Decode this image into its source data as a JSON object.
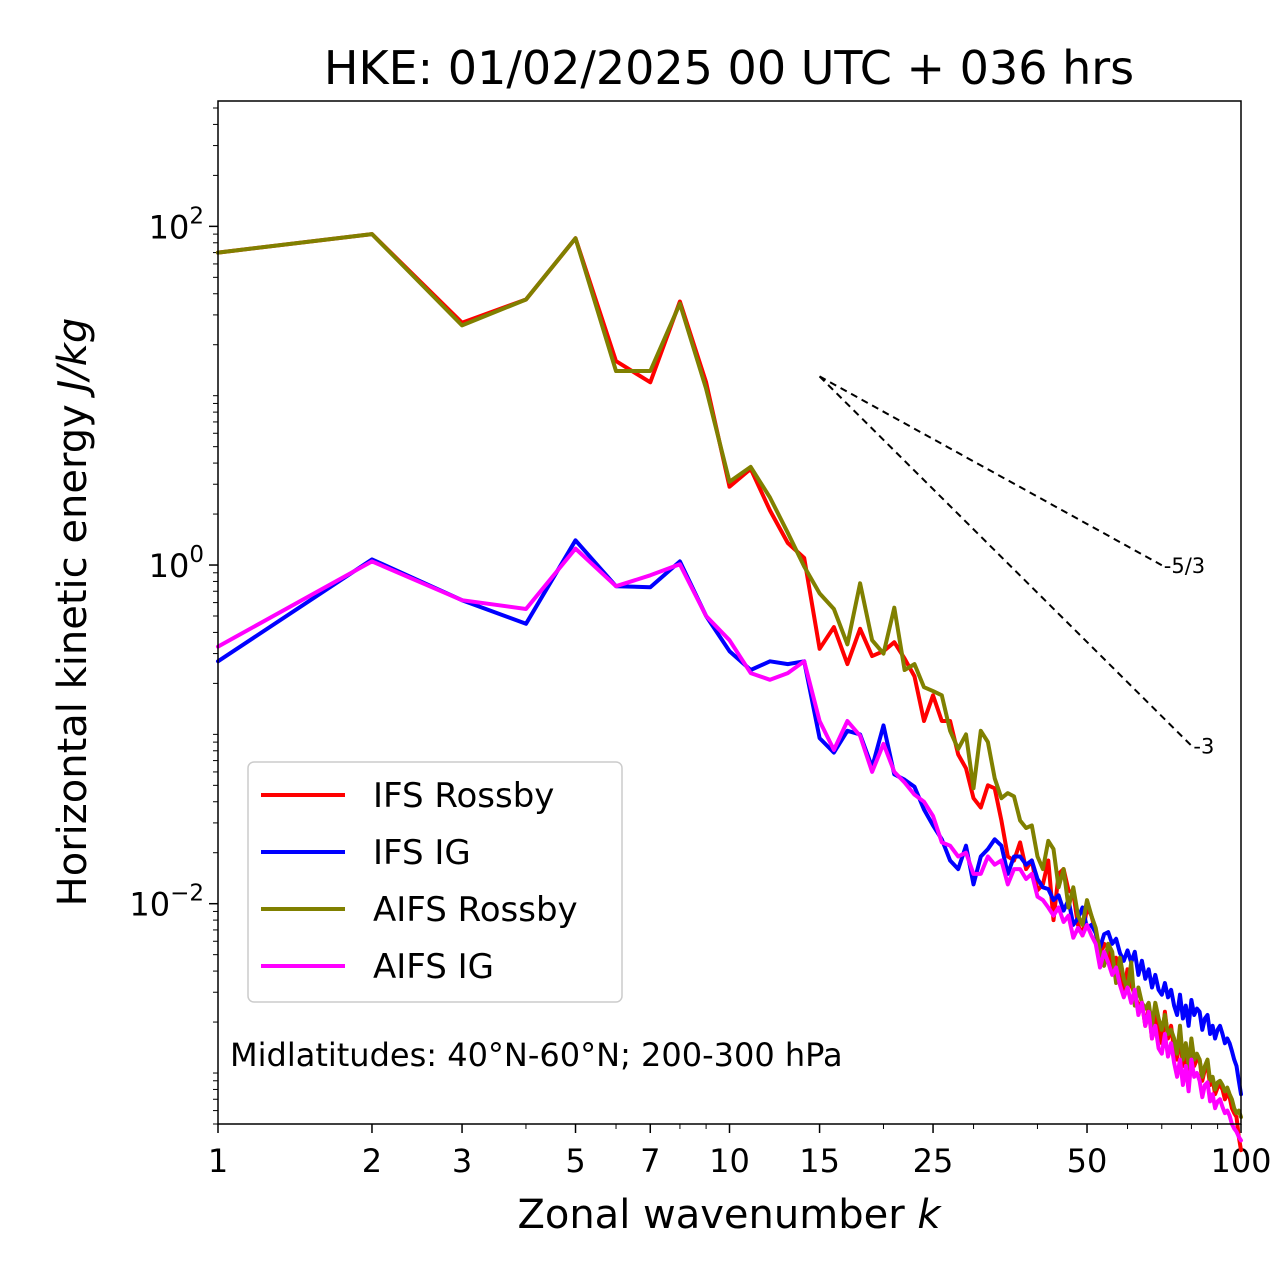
{
  "chart_data": {
    "type": "line",
    "title": "HKE: 01/02/2025 00 UTC + 036 hrs",
    "xlabel": "Zonal wavenumber k",
    "ylabel": "Horizontal kinetic energy J/kg",
    "x_scale": "log",
    "y_scale": "log",
    "xlim": [
      1,
      100
    ],
    "ylim": [
      0.0005,
      550
    ],
    "x_ticks": [
      1,
      2,
      3,
      5,
      7,
      10,
      15,
      25,
      50,
      100
    ],
    "x_tick_labels": [
      "1",
      "2",
      "3",
      "5",
      "7",
      "10",
      "15",
      "25",
      "50",
      "100"
    ],
    "y_ticks": [
      0.01,
      1,
      100
    ],
    "y_tick_labels": [
      "10^-2",
      "10^0",
      "10^2"
    ],
    "grid": false,
    "legend_position": "lower-left",
    "annotation": "Midlatitudes: 40°N-60°N; 200-300 hPa",
    "reference_slopes": [
      {
        "label": "-5/3",
        "slope": -1.6667,
        "x_start": 15,
        "x_end": 70,
        "y_start": 13.0
      },
      {
        "label": "-3",
        "slope": -3,
        "x_start": 15,
        "x_end": 80,
        "y_start": 13.0
      }
    ],
    "series": [
      {
        "name": "IFS Rossby",
        "color": "#ff0000",
        "x": [
          1,
          2,
          3,
          4,
          5,
          6,
          7,
          8,
          9,
          10,
          11,
          12,
          13,
          14,
          15,
          16,
          17,
          18,
          19,
          20,
          21,
          22,
          23,
          24,
          25,
          26,
          27,
          28,
          29,
          30,
          31,
          32,
          33,
          34,
          35,
          36,
          37,
          38,
          39,
          40,
          41,
          42,
          43,
          44,
          45,
          46,
          47,
          48,
          49,
          50,
          51,
          52,
          53,
          54,
          55,
          56,
          57,
          58,
          59,
          60,
          61,
          62,
          63,
          64,
          65,
          66,
          67,
          68,
          69,
          70,
          71,
          72,
          73,
          74,
          75,
          76,
          77,
          78,
          79,
          80,
          81,
          82,
          83,
          84,
          85,
          86,
          87,
          88,
          89,
          90,
          91,
          92,
          93,
          94,
          95,
          96,
          97,
          98,
          99,
          100
        ],
        "y": [
          70,
          90,
          27,
          37,
          85,
          16,
          12,
          36,
          12,
          2.9,
          3.7,
          2.1,
          1.35,
          1.1,
          0.32,
          0.43,
          0.26,
          0.42,
          0.29,
          0.31,
          0.35,
          0.28,
          0.22,
          0.12,
          0.17,
          0.12,
          0.12,
          0.076,
          0.063,
          0.042,
          0.037,
          0.05,
          0.048,
          0.031,
          0.019,
          0.018,
          0.023,
          0.016,
          0.018,
          0.012,
          0.013,
          0.018,
          0.008,
          0.015,
          0.016,
          0.012,
          0.0115,
          0.0075,
          0.0065,
          0.0095,
          0.0085,
          0.0068,
          0.0048,
          0.0058,
          0.0055,
          0.0042,
          0.0048,
          0.0036,
          0.0031,
          0.0041,
          0.0033,
          0.0029,
          0.0025,
          0.0026,
          0.0019,
          0.0024,
          0.0016,
          0.0022,
          0.0018,
          0.0015,
          0.0023,
          0.0016,
          0.0019,
          0.00135,
          0.0012,
          0.0017,
          0.0011,
          0.0013,
          0.00095,
          0.0015,
          0.0011,
          0.0012,
          0.0012,
          0.0009,
          0.00105,
          0.0011,
          0.00085,
          0.00092,
          0.00075,
          0.00082,
          0.00085,
          0.0008,
          0.0007,
          0.00075,
          0.00072,
          0.00062,
          0.00058,
          0.00055,
          0.00042,
          0.00035
        ]
      },
      {
        "name": "IFS IG",
        "color": "#0000ff",
        "x": [
          1,
          2,
          3,
          4,
          5,
          6,
          7,
          8,
          9,
          10,
          11,
          12,
          13,
          14,
          15,
          16,
          17,
          18,
          19,
          20,
          21,
          22,
          23,
          24,
          25,
          26,
          27,
          28,
          29,
          30,
          31,
          32,
          33,
          34,
          35,
          36,
          37,
          38,
          39,
          40,
          41,
          42,
          43,
          44,
          45,
          46,
          47,
          48,
          49,
          50,
          51,
          52,
          53,
          54,
          55,
          56,
          57,
          58,
          59,
          60,
          61,
          62,
          63,
          64,
          65,
          66,
          67,
          68,
          69,
          70,
          71,
          72,
          73,
          74,
          75,
          76,
          77,
          78,
          79,
          80,
          81,
          82,
          83,
          84,
          85,
          86,
          87,
          88,
          89,
          90,
          91,
          92,
          93,
          94,
          95,
          96,
          97,
          98,
          99,
          100
        ],
        "y": [
          0.27,
          1.08,
          0.62,
          0.45,
          1.4,
          0.75,
          0.74,
          1.05,
          0.5,
          0.31,
          0.24,
          0.27,
          0.26,
          0.27,
          0.095,
          0.078,
          0.105,
          0.1,
          0.064,
          0.113,
          0.058,
          0.054,
          0.049,
          0.036,
          0.029,
          0.024,
          0.018,
          0.016,
          0.022,
          0.013,
          0.019,
          0.021,
          0.024,
          0.022,
          0.015,
          0.019,
          0.019,
          0.017,
          0.018,
          0.014,
          0.0125,
          0.0122,
          0.0105,
          0.0112,
          0.0091,
          0.0105,
          0.0075,
          0.0082,
          0.0095,
          0.0072,
          0.0075,
          0.0067,
          0.0055,
          0.0066,
          0.0068,
          0.0058,
          0.0062,
          0.0051,
          0.0046,
          0.0053,
          0.0045,
          0.0052,
          0.0038,
          0.0046,
          0.0036,
          0.0041,
          0.0032,
          0.0038,
          0.0031,
          0.0029,
          0.0034,
          0.0028,
          0.0031,
          0.0025,
          0.0022,
          0.0029,
          0.0021,
          0.0025,
          0.0019,
          0.0027,
          0.0022,
          0.0024,
          0.0023,
          0.0018,
          0.0021,
          0.0022,
          0.0017,
          0.0019,
          0.0016,
          0.0018,
          0.0019,
          0.0017,
          0.0015,
          0.0016,
          0.0015,
          0.00135,
          0.0012,
          0.0011,
          0.0009,
          0.00075
        ]
      },
      {
        "name": "AIFS Rossby",
        "color": "#808000",
        "x": [
          1,
          2,
          3,
          4,
          5,
          6,
          7,
          8,
          9,
          10,
          11,
          12,
          13,
          14,
          15,
          16,
          17,
          18,
          19,
          20,
          21,
          22,
          23,
          24,
          25,
          26,
          27,
          28,
          29,
          30,
          31,
          32,
          33,
          34,
          35,
          36,
          37,
          38,
          39,
          40,
          41,
          42,
          43,
          44,
          45,
          46,
          47,
          48,
          49,
          50,
          51,
          52,
          53,
          54,
          55,
          56,
          57,
          58,
          59,
          60,
          61,
          62,
          63,
          64,
          65,
          66,
          67,
          68,
          69,
          70,
          71,
          72,
          73,
          74,
          75,
          76,
          77,
          78,
          79,
          80,
          81,
          82,
          83,
          84,
          85,
          86,
          87,
          88,
          89,
          90,
          91,
          92,
          93,
          94,
          95,
          96,
          97,
          98,
          99,
          100
        ],
        "y": [
          70,
          90,
          26,
          37,
          85,
          14,
          14,
          35,
          11,
          3.1,
          3.8,
          2.5,
          1.55,
          0.98,
          0.68,
          0.55,
          0.34,
          0.78,
          0.36,
          0.3,
          0.56,
          0.24,
          0.26,
          0.19,
          0.18,
          0.17,
          0.105,
          0.082,
          0.1,
          0.048,
          0.105,
          0.09,
          0.055,
          0.042,
          0.045,
          0.043,
          0.031,
          0.028,
          0.029,
          0.019,
          0.016,
          0.0235,
          0.021,
          0.0125,
          0.016,
          0.0095,
          0.0125,
          0.0085,
          0.0075,
          0.0105,
          0.0085,
          0.0072,
          0.0052,
          0.0043,
          0.0058,
          0.0052,
          0.0034,
          0.0048,
          0.0036,
          0.0031,
          0.0045,
          0.0025,
          0.0032,
          0.0026,
          0.0024,
          0.0026,
          0.0019,
          0.0026,
          0.0021,
          0.0018,
          0.0022,
          0.0017,
          0.0018,
          0.0016,
          0.0013,
          0.0019,
          0.0012,
          0.0015,
          0.0011,
          0.0016,
          0.0012,
          0.0013,
          0.0012,
          0.00095,
          0.0011,
          0.0012,
          0.0009,
          0.00095,
          0.0008,
          0.00088,
          0.0009,
          0.00085,
          0.00078,
          0.00082,
          0.00075,
          0.0007,
          0.00062,
          0.00058,
          0.0006,
          0.00055
        ]
      },
      {
        "name": "AIFS IG",
        "color": "#ff00ff",
        "x": [
          1,
          2,
          3,
          4,
          5,
          6,
          7,
          8,
          9,
          10,
          11,
          12,
          13,
          14,
          15,
          16,
          17,
          18,
          19,
          20,
          21,
          22,
          23,
          24,
          25,
          26,
          27,
          28,
          29,
          30,
          31,
          32,
          33,
          34,
          35,
          36,
          37,
          38,
          39,
          40,
          41,
          42,
          43,
          44,
          45,
          46,
          47,
          48,
          49,
          50,
          51,
          52,
          53,
          54,
          55,
          56,
          57,
          58,
          59,
          60,
          61,
          62,
          63,
          64,
          65,
          66,
          67,
          68,
          69,
          70,
          71,
          72,
          73,
          74,
          75,
          76,
          77,
          78,
          79,
          80,
          81,
          82,
          83,
          84,
          85,
          86,
          87,
          88,
          89,
          90,
          91,
          92,
          93,
          94,
          95,
          96,
          97,
          98,
          99,
          100
        ],
        "y": [
          0.33,
          1.05,
          0.62,
          0.55,
          1.25,
          0.75,
          0.87,
          1.01,
          0.5,
          0.36,
          0.23,
          0.21,
          0.23,
          0.27,
          0.12,
          0.081,
          0.12,
          0.098,
          0.06,
          0.088,
          0.06,
          0.052,
          0.044,
          0.04,
          0.033,
          0.023,
          0.022,
          0.019,
          0.02,
          0.015,
          0.015,
          0.019,
          0.017,
          0.018,
          0.013,
          0.016,
          0.016,
          0.014,
          0.015,
          0.011,
          0.0105,
          0.0095,
          0.0085,
          0.0095,
          0.0078,
          0.0085,
          0.0063,
          0.0072,
          0.0065,
          0.0075,
          0.0065,
          0.0058,
          0.0042,
          0.0052,
          0.0045,
          0.0038,
          0.0042,
          0.0033,
          0.0028,
          0.0032,
          0.0026,
          0.0031,
          0.0022,
          0.0026,
          0.0019,
          0.0023,
          0.0016,
          0.0019,
          0.0014,
          0.0013,
          0.0017,
          0.00125,
          0.0015,
          0.00115,
          0.00095,
          0.0012,
          0.00085,
          0.0011,
          0.00078,
          0.0012,
          0.00095,
          0.001,
          0.0009,
          0.00072,
          0.00085,
          0.00088,
          0.00068,
          0.00075,
          0.00062,
          0.00068,
          0.0007,
          0.00063,
          0.00058,
          0.0006,
          0.00056,
          0.0005,
          0.00047,
          0.00045,
          0.00042,
          0.0004
        ]
      }
    ]
  }
}
